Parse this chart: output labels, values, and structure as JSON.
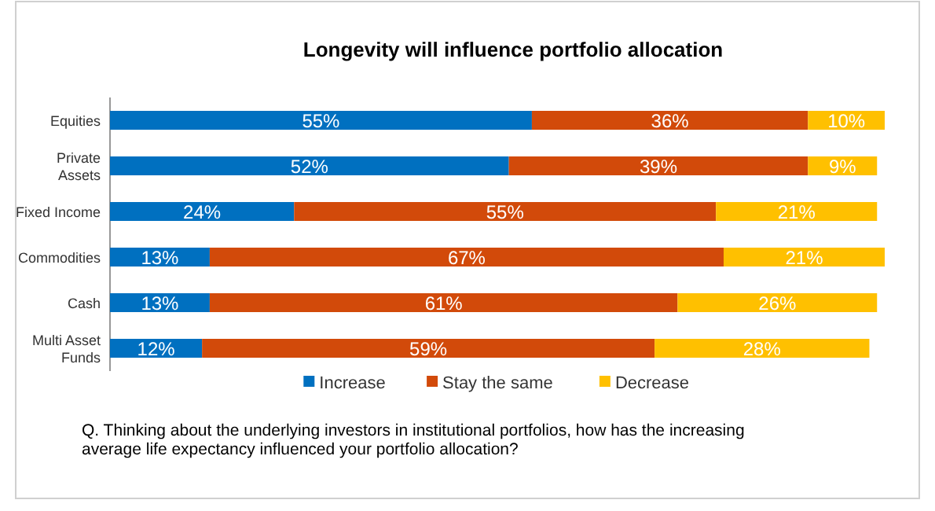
{
  "chart_data": {
    "type": "bar",
    "orientation": "horizontal",
    "stacked": true,
    "title": "Longevity will influence portfolio allocation",
    "categories": [
      "Equities",
      "Private Assets",
      "Fixed Income",
      "Commodities",
      "Cash",
      "Multi Asset Funds"
    ],
    "series": [
      {
        "name": "Increase",
        "color": "#0070c0",
        "values": [
          55,
          52,
          24,
          13,
          13,
          12
        ],
        "value_labels": [
          "55%",
          "52%",
          "24%",
          "13%",
          "13%",
          "12%"
        ]
      },
      {
        "name": "Stay the same",
        "color": "#d24a0a",
        "values": [
          36,
          39,
          55,
          67,
          61,
          59
        ],
        "value_labels": [
          "36%",
          "39%",
          "55%",
          "67%",
          "61%",
          "59%"
        ]
      },
      {
        "name": "Decrease",
        "color": "#ffc000",
        "values": [
          10,
          9,
          21,
          21,
          26,
          28
        ],
        "value_labels": [
          "10%",
          "9%",
          "21%",
          "21%",
          "26%",
          "28%"
        ]
      }
    ],
    "xlim": [
      0,
      101
    ],
    "legend": "bottom",
    "grid": false,
    "annotations": [
      "Q. Thinking about the underlying investors in institutional portfolios, how has the increasing average life expectancy influenced your portfolio allocation?"
    ]
  }
}
